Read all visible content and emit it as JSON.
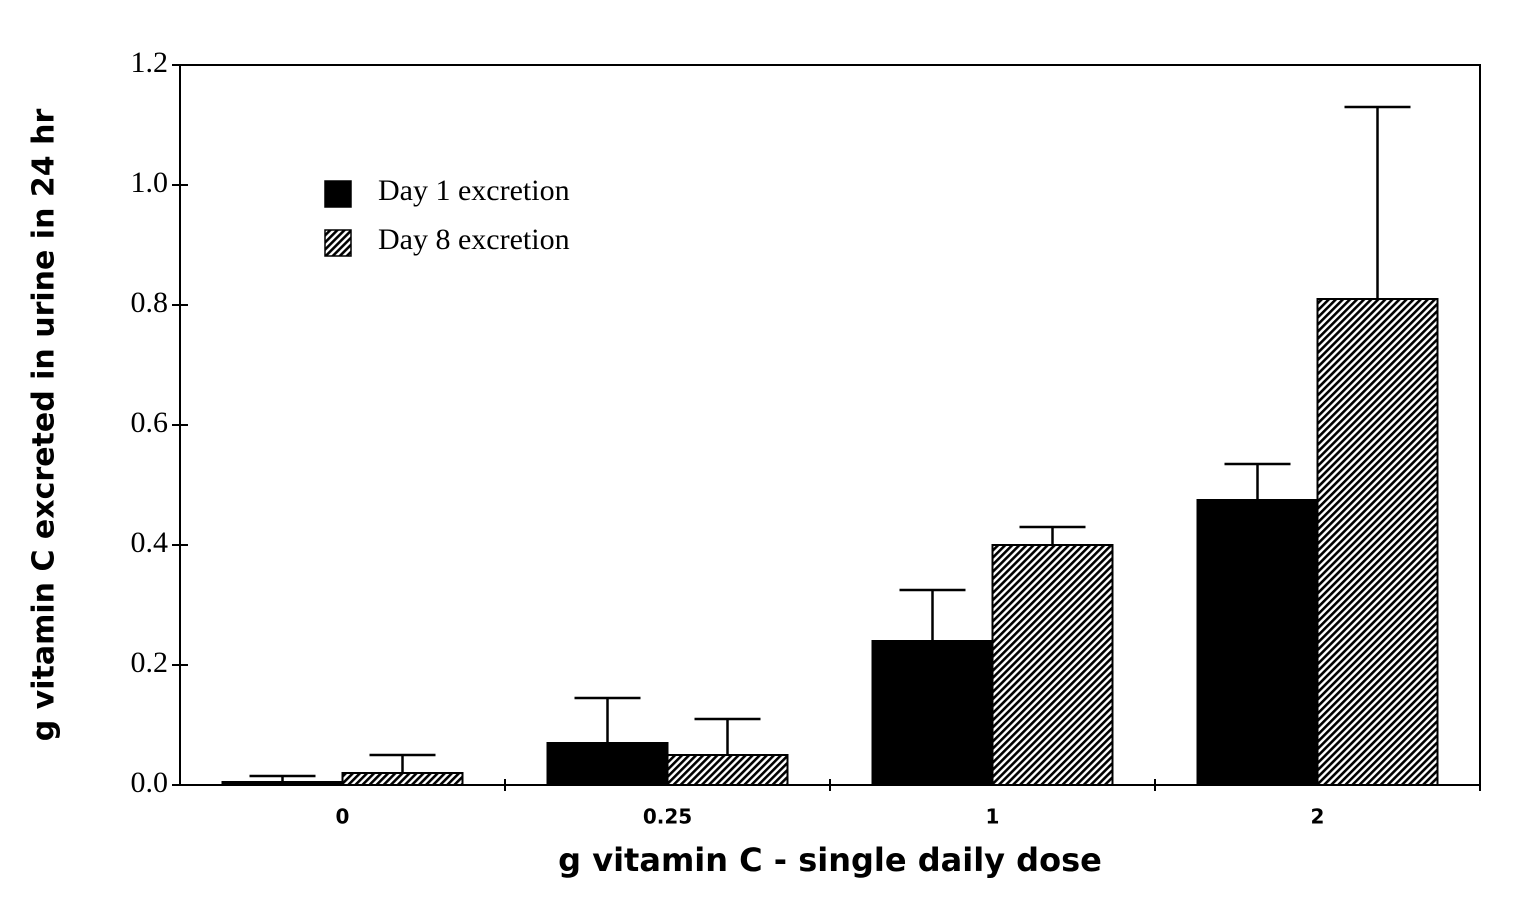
{
  "chart_data": {
    "type": "bar",
    "x_label": "g  vitamin  C  -  single  daily  dose",
    "y_label": "g  vitamin  C  excreted  in  urine  in  24  hr",
    "categories": [
      "0",
      "0.25",
      "1",
      "2"
    ],
    "series": [
      {
        "name": "Day 1 excretion",
        "color": "#000000",
        "pattern": "solid",
        "values": [
          0.005,
          0.07,
          0.24,
          0.475
        ],
        "errors": [
          0.01,
          0.075,
          0.085,
          0.06
        ]
      },
      {
        "name": "Day 8 excretion",
        "color": "#000000",
        "pattern": "hatch",
        "values": [
          0.02,
          0.05,
          0.4,
          0.81
        ],
        "errors": [
          0.03,
          0.06,
          0.03,
          0.32
        ]
      }
    ],
    "ylim": [
      0,
      1.2
    ],
    "yticks": [
      {
        "value": 0,
        "label": "0.0"
      },
      0.2,
      0.4,
      0.6,
      0.8,
      {
        "value": 1,
        "label": "1.0"
      },
      1.2
    ],
    "legend": "upper left"
  }
}
